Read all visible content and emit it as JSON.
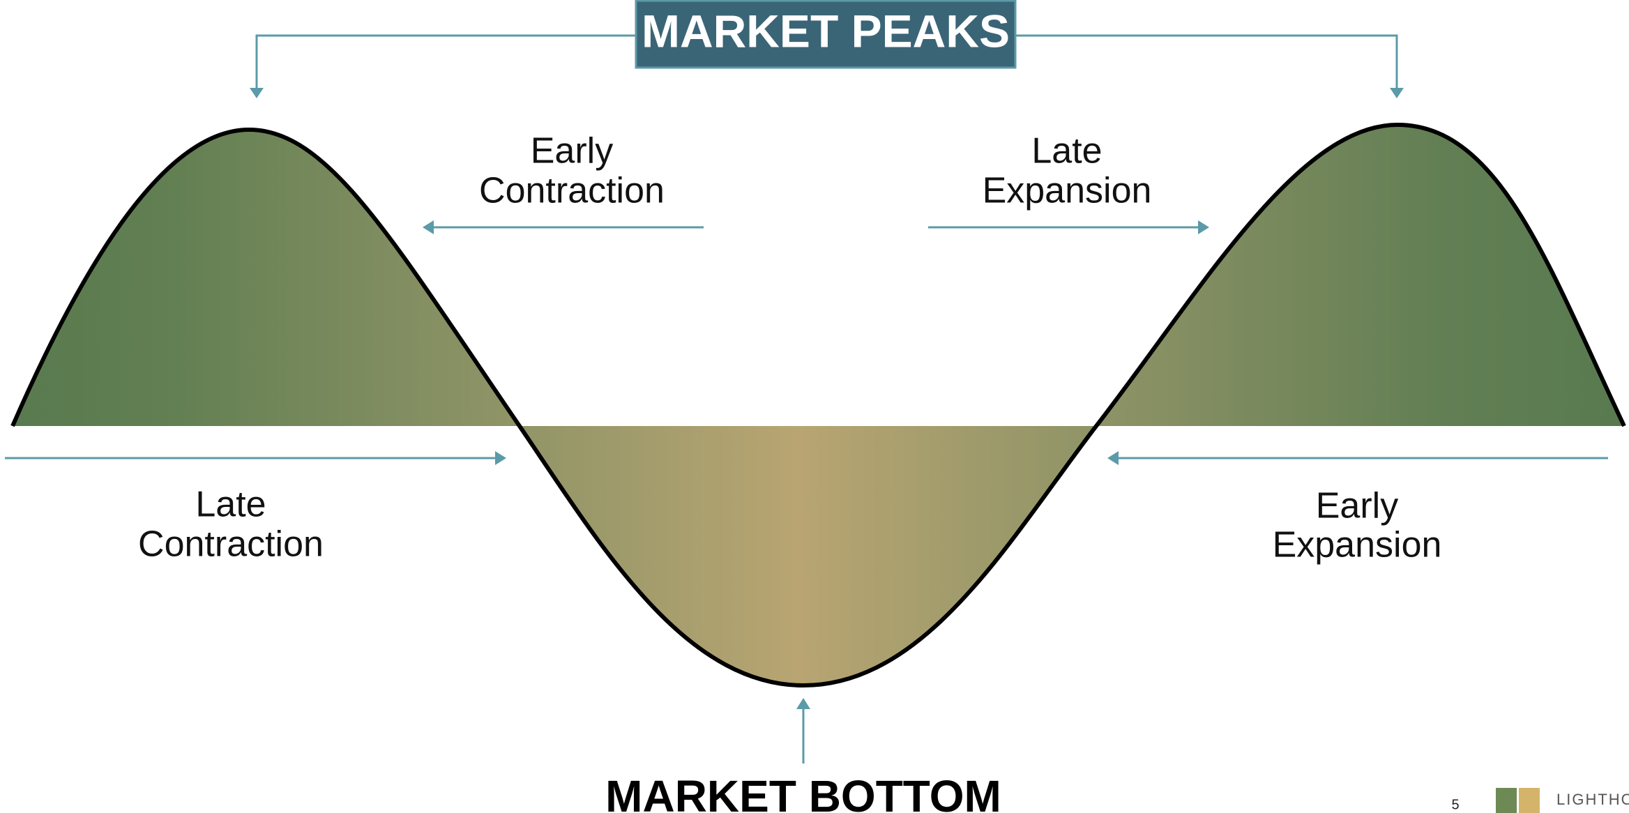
{
  "title": "MARKET PEAKS",
  "bottom_label": "MARKET BOTTOM",
  "phases": [
    {
      "lines": [
        "Early",
        "Contraction"
      ]
    },
    {
      "lines": [
        "Late",
        "Expansion"
      ]
    },
    {
      "lines": [
        "Late",
        "Contraction"
      ]
    },
    {
      "lines": [
        "Early",
        "Expansion"
      ]
    }
  ],
  "footer": {
    "page_number": "5",
    "logo_text": "LIGHTHO"
  }
}
